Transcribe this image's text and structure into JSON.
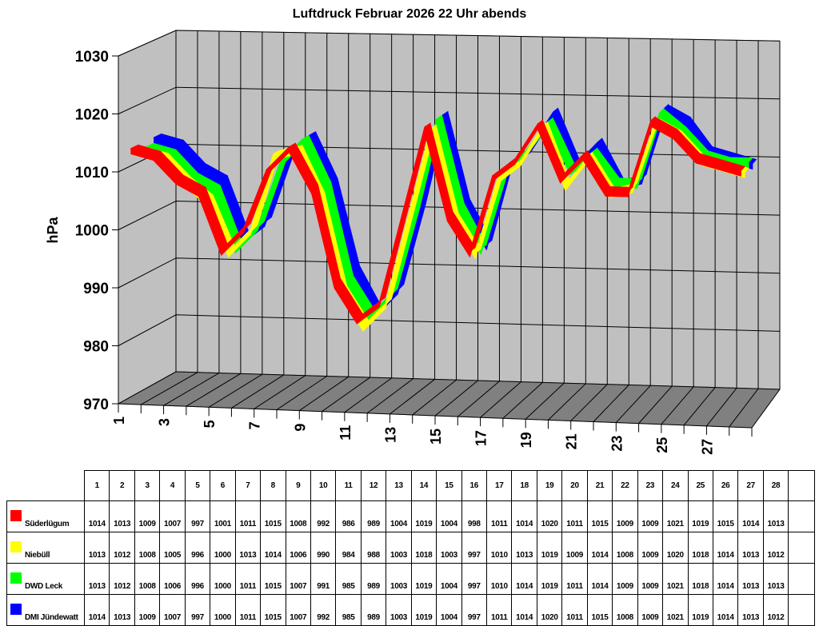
{
  "chart_data": {
    "type": "line",
    "subtype": "3d-ribbon",
    "title": "Luftdruck Februar 2026 22 Uhr abends",
    "xlabel": "",
    "ylabel": "hPa",
    "ylim": [
      970,
      1030
    ],
    "yticks": [
      "970",
      "980",
      "990",
      "1000",
      "1010",
      "1020",
      "1030"
    ],
    "xtick_labels": [
      "1",
      "3",
      "5",
      "7",
      "9",
      "11",
      "13",
      "15",
      "17",
      "19",
      "21",
      "23",
      "25",
      "27"
    ],
    "grid": true,
    "legend_position": "data-table-below",
    "categories": [
      "1",
      "2",
      "3",
      "4",
      "5",
      "6",
      "7",
      "8",
      "9",
      "10",
      "11",
      "12",
      "13",
      "14",
      "15",
      "16",
      "17",
      "18",
      "19",
      "20",
      "21",
      "22",
      "23",
      "24",
      "25",
      "26",
      "27",
      "28"
    ],
    "series": [
      {
        "name": "Süderlügum",
        "color": "#ff0000",
        "values": [
          1014,
          1013,
          1009,
          1007,
          997,
          1001,
          1011,
          1015,
          1008,
          992,
          986,
          989,
          1004,
          1019,
          1004,
          998,
          1011,
          1014,
          1020,
          1011,
          1015,
          1009,
          1009,
          1021,
          1019,
          1015,
          1014,
          1013
        ]
      },
      {
        "name": "Niebüll",
        "color": "#ffff00",
        "values": [
          1013,
          1012,
          1008,
          1005,
          996,
          1000,
          1013,
          1014,
          1006,
          990,
          984,
          988,
          1003,
          1018,
          1003,
          997,
          1010,
          1013,
          1019,
          1009,
          1014,
          1008,
          1009,
          1020,
          1018,
          1014,
          1013,
          1012
        ]
      },
      {
        "name": "DWD Leck",
        "color": "#00ff00",
        "values": [
          1013,
          1012,
          1008,
          1006,
          996,
          1000,
          1011,
          1015,
          1007,
          991,
          985,
          989,
          1003,
          1019,
          1004,
          997,
          1010,
          1014,
          1019,
          1011,
          1014,
          1009,
          1009,
          1021,
          1018,
          1014,
          1013,
          1013
        ]
      },
      {
        "name": "DMI Jündewatt",
        "color": "#0000ff",
        "values": [
          1014,
          1013,
          1009,
          1007,
          997,
          1000,
          1011,
          1015,
          1007,
          992,
          985,
          989,
          1003,
          1019,
          1004,
          997,
          1011,
          1014,
          1020,
          1011,
          1015,
          1008,
          1009,
          1021,
          1019,
          1014,
          1013,
          1012
        ]
      }
    ]
  },
  "colors": {
    "wall": "#c0c0c0",
    "floor": "#808080",
    "grid": "#000000"
  }
}
